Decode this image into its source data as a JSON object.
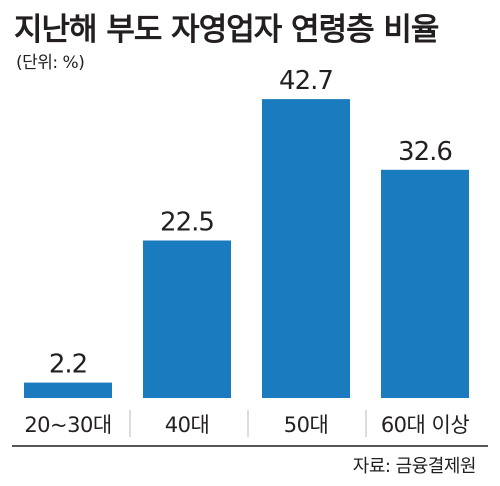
{
  "chart_data": {
    "type": "bar",
    "title": "지난해 부도 자영업자 연령층 비율",
    "unit_note": "(단위: %)",
    "categories": [
      "20~30대",
      "40대",
      "50대",
      "60대 이상"
    ],
    "values": [
      2.2,
      22.5,
      42.7,
      32.6
    ],
    "data_labels": [
      "2.2",
      "22.5",
      "42.7",
      "32.6"
    ],
    "source": "자료: 금융결제원",
    "grid": false,
    "legend": "none",
    "bar_color": "#1a7bbf",
    "baseline_color": "#231f20"
  }
}
